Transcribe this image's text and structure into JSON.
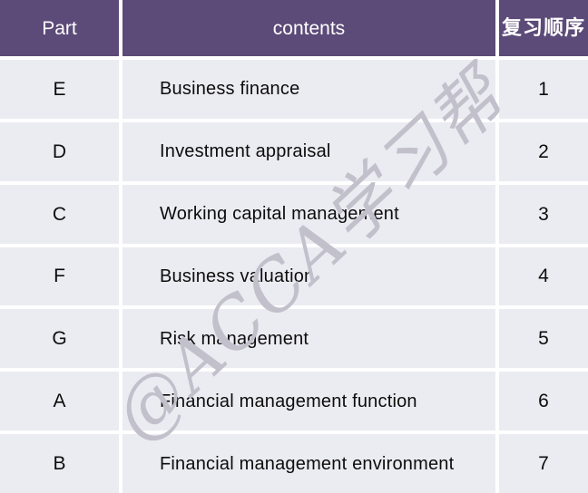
{
  "table": {
    "header": {
      "part": "Part",
      "contents": "contents",
      "order": "复习顺序"
    },
    "rows": [
      {
        "part": "E",
        "contents": "Business finance",
        "order": "1"
      },
      {
        "part": "D",
        "contents": "Investment appraisal",
        "order": "2"
      },
      {
        "part": "C",
        "contents": "Working capital management",
        "order": "3"
      },
      {
        "part": "F",
        "contents": "Business valuation",
        "order": "4"
      },
      {
        "part": "G",
        "contents": "Risk management",
        "order": "5"
      },
      {
        "part": "A",
        "contents": "Financial management function",
        "order": "6"
      },
      {
        "part": "B",
        "contents": "Financial management environment",
        "order": "7"
      }
    ]
  },
  "watermark": {
    "text": "@ACCA学习帮"
  },
  "colors": {
    "header_bg": "#5c4a78",
    "row_bg": "#ebebf2",
    "gap": "#ffffff",
    "header_text": "#ffffff",
    "body_text": "#0d0d0d",
    "watermark": "#c2c0cb"
  }
}
